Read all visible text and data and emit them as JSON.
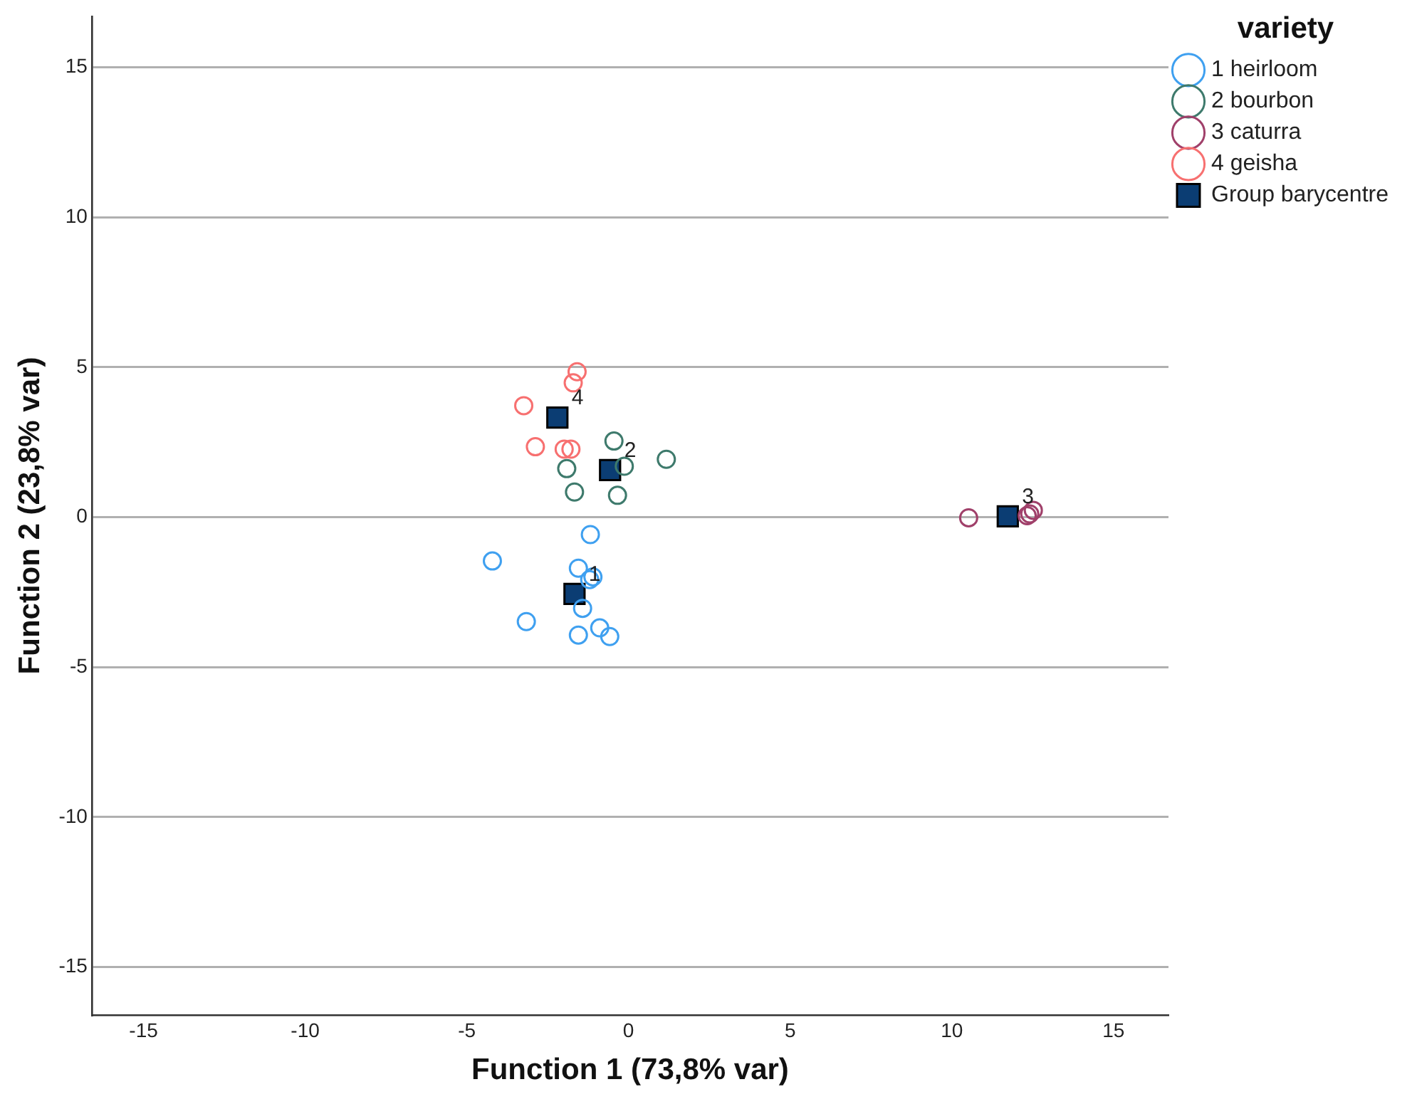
{
  "chart_data": {
    "type": "scatter",
    "xlabel": "Function 1 (73,8% var)",
    "ylabel": "Function 2 (23,8% var)",
    "legend_title": "variety",
    "legend": "top right",
    "grid": "y",
    "marker": "circle",
    "xlim": [
      -16.6,
      16.7
    ],
    "xticks": [
      -15,
      -10,
      -5,
      0,
      5,
      10,
      15
    ],
    "ylim": [
      -16.6,
      16.7
    ],
    "yticks": [
      -15,
      -10,
      -5,
      0,
      5,
      10,
      15
    ],
    "series": [
      {
        "name": "1 heirloom",
        "color": "#3fa0f0",
        "x": [
          -1.18,
          -4.21,
          -1.55,
          -1.1,
          -1.2,
          -1.42,
          -3.16,
          -0.89,
          -1.55,
          -0.58
        ],
        "values": [
          -0.58,
          -1.46,
          -1.7,
          -1.99,
          -2.08,
          -3.04,
          -3.48,
          -3.69,
          -3.93,
          -3.98
        ]
      },
      {
        "name": "2 bourbon",
        "color": "#3e7a6c",
        "x": [
          -0.45,
          1.17,
          -1.91,
          -0.13,
          -1.67,
          -0.34
        ],
        "values": [
          2.54,
          1.93,
          1.62,
          1.7,
          0.84,
          0.73
        ]
      },
      {
        "name": "3 caturra",
        "color": "#a0406a",
        "x": [
          10.52,
          12.41,
          12.52,
          12.33
        ],
        "values": [
          -0.02,
          0.11,
          0.23,
          0.05
        ]
      },
      {
        "name": "4 geisha",
        "color": "#f77070",
        "x": [
          -1.59,
          -1.71,
          -3.24,
          -2.88,
          -1.99,
          -1.78
        ],
        "values": [
          4.85,
          4.48,
          3.72,
          2.35,
          2.27,
          2.27
        ]
      },
      {
        "name": "Group barycentre",
        "color": "#0b3d73",
        "marker": "square",
        "x": [
          -1.67,
          -0.57,
          11.73,
          -2.2
        ],
        "values": [
          -2.56,
          1.57,
          0.03,
          3.32
        ]
      }
    ],
    "annotations": [
      {
        "text": "1",
        "x": -1.67,
        "y": -2.56
      },
      {
        "text": "2",
        "x": -0.57,
        "y": 1.57
      },
      {
        "text": "3",
        "x": 11.73,
        "y": 0.03
      },
      {
        "text": "4",
        "x": -2.2,
        "y": 3.32
      }
    ]
  }
}
